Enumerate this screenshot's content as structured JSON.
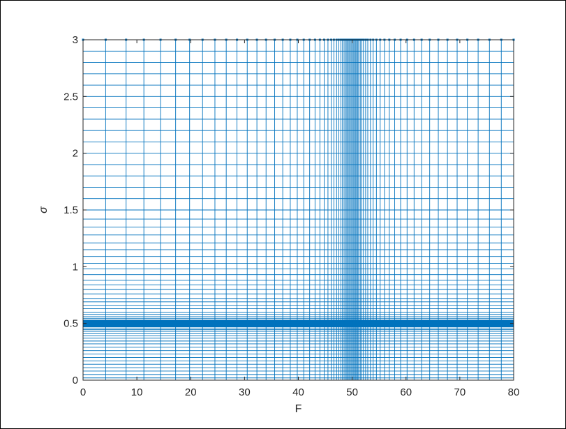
{
  "chart_data": {
    "type": "line",
    "title": "",
    "xlabel": "F",
    "ylabel": "σ",
    "xlim": [
      0,
      80
    ],
    "ylim": [
      0,
      3
    ],
    "xticks": [
      "0",
      "10",
      "20",
      "30",
      "40",
      "50",
      "60",
      "70",
      "80"
    ],
    "yticks": [
      "0",
      "0.5",
      "1",
      "1.5",
      "2",
      "2.5",
      "3"
    ],
    "grid": false,
    "line_color": "#0072bd",
    "mesh": {
      "vertical_lines_x": [
        0,
        4.2,
        8,
        11.3,
        14.4,
        17.2,
        19.8,
        22.2,
        24.5,
        26.6,
        28.6,
        30.5,
        32.3,
        34,
        35.6,
        37.1,
        38.5,
        39.8,
        41,
        42.1,
        43.1,
        44,
        44.8,
        45.5,
        46.1,
        46.6,
        47.1,
        47.5,
        47.9,
        48.2,
        48.5,
        48.8,
        49,
        49.2,
        49.4,
        49.6,
        49.8,
        50,
        50.2,
        50.4,
        50.6,
        50.8,
        51,
        51.2,
        51.5,
        51.8,
        52.1,
        52.5,
        52.9,
        53.4,
        53.9,
        54.5,
        55.2,
        56,
        56.9,
        57.9,
        59,
        60.2,
        61.5,
        62.9,
        64.4,
        66,
        67.7,
        69.5,
        71.4,
        73.4,
        75.5,
        77.7,
        80
      ],
      "horizontal_lines_y": [
        3,
        2.9,
        2.8,
        2.7,
        2.6,
        2.5,
        2.4,
        2.3,
        2.2,
        2.1,
        2,
        1.9,
        1.8,
        1.7,
        1.6,
        1.5,
        1.42,
        1.35,
        1.28,
        1.21,
        1.15,
        1.09,
        1.03,
        0.98,
        0.93,
        0.88,
        0.84,
        0.8,
        0.76,
        0.72,
        0.69,
        0.66,
        0.63,
        0.6,
        0.58,
        0.56,
        0.545,
        0.53,
        0.52,
        0.51,
        0.5,
        0.49,
        0.48,
        0.47,
        0.46,
        0.445,
        0.43,
        0.41,
        0.39,
        0.37,
        0.345,
        0.32,
        0.29,
        0.26,
        0.23,
        0.2,
        0.17,
        0.14,
        0.11,
        0.08,
        0.05,
        0.02
      ],
      "dense_band_y": [
        0.47,
        0.53
      ]
    }
  }
}
